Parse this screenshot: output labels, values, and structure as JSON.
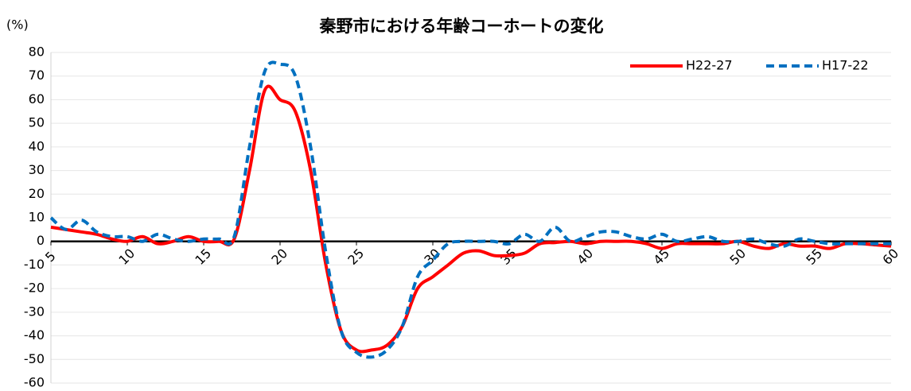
{
  "chart_data": {
    "type": "line",
    "title": "秦野市における年齢コーホートの変化",
    "y_label": "(%)",
    "x": [
      5,
      6,
      7,
      8,
      9,
      10,
      11,
      12,
      13,
      14,
      15,
      16,
      17,
      18,
      19,
      20,
      21,
      22,
      23,
      24,
      25,
      26,
      27,
      28,
      29,
      30,
      31,
      32,
      33,
      34,
      35,
      36,
      37,
      38,
      39,
      40,
      41,
      42,
      43,
      44,
      45,
      46,
      47,
      48,
      49,
      50,
      51,
      52,
      53,
      54,
      55,
      56,
      57,
      58,
      59,
      60
    ],
    "series": [
      {
        "name": "H22-27",
        "color": "#ff0000",
        "dash": "solid",
        "values": [
          6,
          5,
          4,
          3,
          1,
          0,
          2,
          -1,
          0,
          2,
          0,
          0,
          1,
          30,
          64,
          60,
          55,
          30,
          -10,
          -38,
          -46,
          -46,
          -44,
          -36,
          -20,
          -15,
          -10,
          -5,
          -4,
          -6,
          -6,
          -5,
          -1,
          -0.5,
          0,
          -1,
          0,
          0,
          0,
          -1,
          -3,
          -1,
          -1,
          -1,
          -1,
          0,
          -2,
          -3,
          -1,
          -2,
          -2,
          -3,
          -1,
          -1,
          -1.5,
          -2
        ]
      },
      {
        "name": "H17-22",
        "color": "#0070c0",
        "dash": "dashed",
        "values": [
          10,
          5,
          9,
          4,
          2,
          2,
          0,
          3,
          1,
          0,
          1,
          1,
          2,
          40,
          72,
          75,
          70,
          40,
          -5,
          -38,
          -47,
          -49,
          -46,
          -36,
          -15,
          -8,
          -1,
          0,
          0,
          0,
          -1,
          3,
          0,
          6,
          0,
          2,
          4,
          4,
          2,
          1,
          3,
          0,
          1,
          2,
          0,
          0,
          1,
          -1,
          -2,
          1,
          0,
          -1,
          -1,
          -1,
          -1,
          -1
        ]
      }
    ],
    "xlim": [
      5,
      60
    ],
    "xticks": [
      5,
      10,
      15,
      20,
      25,
      30,
      35,
      40,
      45,
      50,
      55,
      60
    ],
    "ylim": [
      -60,
      80
    ],
    "yticks": [
      -60,
      -50,
      -40,
      -30,
      -20,
      -10,
      0,
      10,
      20,
      30,
      40,
      50,
      60,
      70,
      80
    ],
    "grid": true,
    "legend": "top-right"
  }
}
